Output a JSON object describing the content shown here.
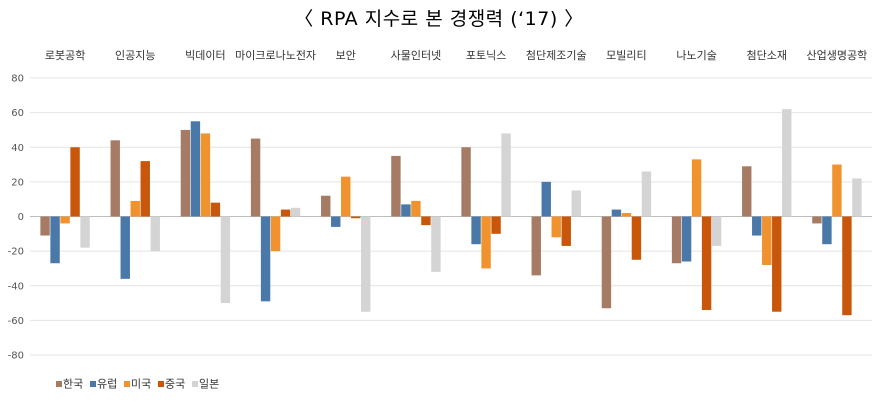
{
  "title": "〈 RPA 지수로 본 경쟁력 (‘17) 〉",
  "chart_data": {
    "type": "bar",
    "title": "〈 RPA 지수로 본 경쟁력 (‘17) 〉",
    "xlabel": "",
    "ylabel": "",
    "ylim": [
      -80,
      80
    ],
    "yticks": [
      80,
      60,
      40,
      20,
      0,
      -20,
      -40,
      -60,
      -80
    ],
    "grid": true,
    "legend_position": "bottom-left",
    "categories": [
      "로봇공학",
      "인공지능",
      "빅데이터",
      "마이크로나노전자",
      "보안",
      "사물인터넷",
      "포토닉스",
      "첨단제조기술",
      "모빌리티",
      "나노기술",
      "첨단소재",
      "산업생명공학"
    ],
    "series": [
      {
        "name": "한국",
        "color": "#a57b66",
        "values": [
          -11,
          44,
          50,
          45,
          12,
          35,
          40,
          -34,
          -53,
          -27,
          29,
          -4
        ]
      },
      {
        "name": "유럽",
        "color": "#4a78a8",
        "values": [
          -27,
          -36,
          55,
          -49,
          -6,
          7,
          -16,
          20,
          4,
          -26,
          -11,
          -16
        ]
      },
      {
        "name": "미국",
        "color": "#f0922d",
        "values": [
          -4,
          9,
          48,
          -20,
          23,
          9,
          -30,
          -12,
          2,
          33,
          -28,
          30
        ]
      },
      {
        "name": "중국",
        "color": "#c9570b",
        "values": [
          40,
          32,
          8,
          4,
          -1,
          -5,
          -10,
          -17,
          -25,
          -54,
          -55,
          -57
        ]
      },
      {
        "name": "일본",
        "color": "#d4d4d4",
        "values": [
          -18,
          -20,
          -50,
          5,
          -55,
          -32,
          48,
          15,
          26,
          -17,
          62,
          22
        ]
      }
    ]
  }
}
